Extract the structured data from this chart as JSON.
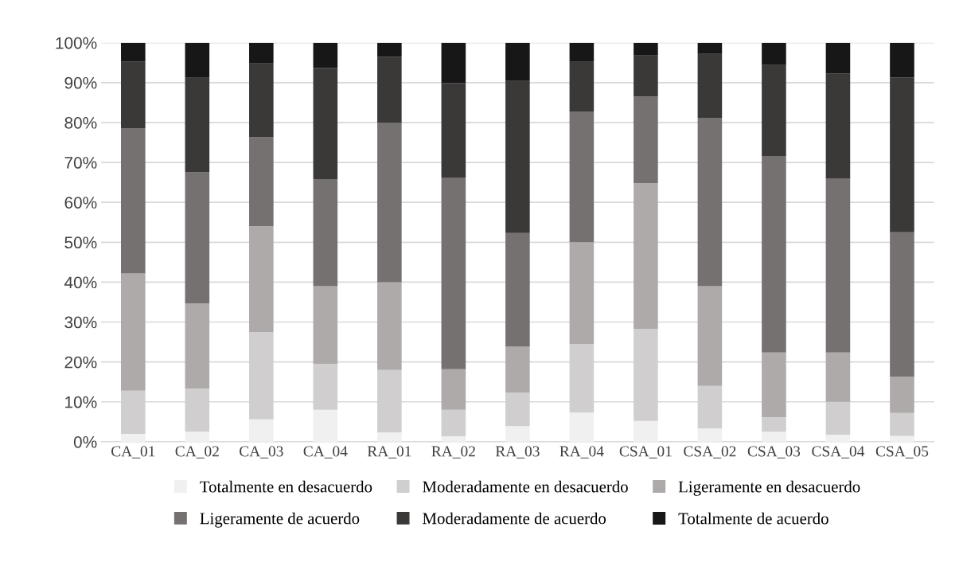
{
  "chart_data": {
    "type": "bar",
    "stacked": true,
    "categories": [
      "CA_01",
      "CA_02",
      "CA_03",
      "CA_04",
      "RA_01",
      "RA_02",
      "RA_03",
      "RA_04",
      "CSA_01",
      "CSA_02",
      "CSA_03",
      "CSA_04",
      "CSA_05"
    ],
    "series": [
      {
        "name": "Totalmente en desacuerdo",
        "color": "#f0f0f0",
        "values": [
          2,
          2.5,
          5.6,
          8,
          2.3,
          1.4,
          3.9,
          7.3,
          5.2,
          3.3,
          2.5,
          1.8,
          1.5
        ]
      },
      {
        "name": "Moderadamente en desacuerdo",
        "color": "#d0cece",
        "values": [
          10.8,
          10.8,
          21.9,
          11.5,
          15.7,
          6.6,
          8.4,
          17.2,
          23.1,
          10.7,
          3.6,
          8.2,
          5.7
        ]
      },
      {
        "name": "Ligeramente en desacuerdo",
        "color": "#aeaaaa",
        "values": [
          29.4,
          21.4,
          26.5,
          19.5,
          22,
          10.2,
          11.5,
          25.5,
          36.5,
          25,
          16.3,
          12.4,
          9.1
        ]
      },
      {
        "name": "Ligeramente de acuerdo",
        "color": "#767171",
        "values": [
          36.3,
          32.8,
          22.3,
          26.8,
          40,
          48,
          28.5,
          32.8,
          21.7,
          42.2,
          49.2,
          43.6,
          36.2
        ]
      },
      {
        "name": "Moderadamente de acuerdo",
        "color": "#3b3838",
        "values": [
          16.8,
          23.7,
          18.5,
          27.9,
          16.5,
          23.7,
          38.1,
          12.4,
          10.3,
          16,
          22.8,
          26.3,
          38.8
        ]
      },
      {
        "name": "Totalmente de acuerdo",
        "color": "#171717",
        "values": [
          4.7,
          8.8,
          5.2,
          6.3,
          3.5,
          10.1,
          9.6,
          4.8,
          3.2,
          2.8,
          5.6,
          7.7,
          8.7
        ]
      }
    ],
    "ylim": [
      0,
      100
    ],
    "yticks": [
      {
        "value": 0,
        "label": "0%"
      },
      {
        "value": 10,
        "label": "10%"
      },
      {
        "value": 20,
        "label": "20%"
      },
      {
        "value": 30,
        "label": "30%"
      },
      {
        "value": 40,
        "label": "40%"
      },
      {
        "value": 50,
        "label": "50%"
      },
      {
        "value": 60,
        "label": "60%"
      },
      {
        "value": 70,
        "label": "70%"
      },
      {
        "value": 80,
        "label": "80%"
      },
      {
        "value": 90,
        "label": "90%"
      },
      {
        "value": 100,
        "label": "100%"
      }
    ],
    "grid": "y",
    "legend": "bottom"
  }
}
